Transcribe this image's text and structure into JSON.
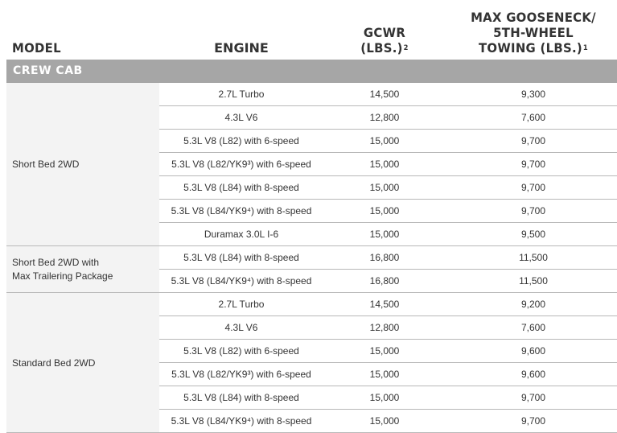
{
  "header": {
    "model": "MODEL",
    "engine": "ENGINE",
    "gcwr_line1": "GCWR",
    "gcwr_line2": "(LBS.)",
    "gcwr_sup": "2",
    "tow_line1": "MAX GOOSENECK/",
    "tow_line2": "5TH-WHEEL",
    "tow_line3": "TOWING (LBS.)",
    "tow_sup": "1"
  },
  "section": {
    "label": "CREW CAB"
  },
  "groups": [
    {
      "label_line1": "Short Bed 2WD",
      "label_line2": "",
      "rows": [
        {
          "engine": "2.7L Turbo",
          "gcwr": "14,500",
          "towing": "9,300"
        },
        {
          "engine": "4.3L V6",
          "gcwr": "12,800",
          "towing": "7,600"
        },
        {
          "engine": "5.3L V8 (L82) with 6-speed",
          "gcwr": "15,000",
          "towing": "9,700"
        },
        {
          "engine": "5.3L V8 (L82/YK9³) with 6-speed",
          "gcwr": "15,000",
          "towing": "9,700"
        },
        {
          "engine": "5.3L V8 (L84) with 8-speed",
          "gcwr": "15,000",
          "towing": "9,700"
        },
        {
          "engine": "5.3L V8 (L84/YK9⁴) with 8-speed",
          "gcwr": "15,000",
          "towing": "9,700"
        },
        {
          "engine": "Duramax 3.0L I-6",
          "gcwr": "15,000",
          "towing": "9,500"
        }
      ]
    },
    {
      "label_line1": "Short Bed 2WD with",
      "label_line2": "Max Trailering Package",
      "rows": [
        {
          "engine": "5.3L V8 (L84) with 8-speed",
          "gcwr": "16,800",
          "towing": "11,500"
        },
        {
          "engine": "5.3L V8 (L84/YK9⁴) with 8-speed",
          "gcwr": "16,800",
          "towing": "11,500"
        }
      ]
    },
    {
      "label_line1": "Standard Bed 2WD",
      "label_line2": "",
      "rows": [
        {
          "engine": "2.7L Turbo",
          "gcwr": "14,500",
          "towing": "9,200"
        },
        {
          "engine": "4.3L V6",
          "gcwr": "12,800",
          "towing": "7,600"
        },
        {
          "engine": "5.3L V8 (L82) with 6-speed",
          "gcwr": "15,000",
          "towing": "9,600"
        },
        {
          "engine": "5.3L V8 (L82/YK9³) with 6-speed",
          "gcwr": "15,000",
          "towing": "9,600"
        },
        {
          "engine": "5.3L V8 (L84) with 8-speed",
          "gcwr": "15,000",
          "towing": "9,700"
        },
        {
          "engine": "5.3L V8 (L84/YK9⁴) with 8-speed",
          "gcwr": "15,000",
          "towing": "9,700"
        }
      ]
    }
  ]
}
